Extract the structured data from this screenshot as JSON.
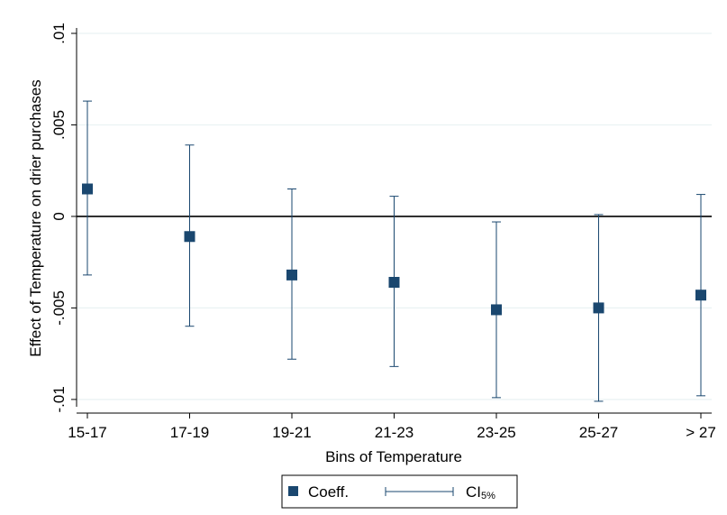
{
  "chart_data": {
    "type": "scatter",
    "title": "",
    "xlabel": "Bins of Temperature",
    "ylabel": "Effect of Temperature on drier purchases",
    "categories": [
      "15-17",
      "17-19",
      "19-21",
      "21-23",
      "23-25",
      "25-27",
      "> 27"
    ],
    "ylim": [
      -0.0104,
      0.01
    ],
    "yticks": [
      0.01,
      0.005,
      0,
      -0.005,
      -0.01
    ],
    "ytick_labels": [
      ".01",
      ".005",
      "0",
      "-.005",
      "-.01"
    ],
    "grid": true,
    "reference_line": 0,
    "series": [
      {
        "name": "Coeff.",
        "values": [
          0.0015,
          -0.0011,
          -0.0032,
          -0.0036,
          -0.0051,
          -0.005,
          -0.0043
        ]
      },
      {
        "name": "CI",
        "name_subscript": "5%",
        "lower": [
          -0.0032,
          -0.006,
          -0.0078,
          -0.0082,
          -0.0099,
          -0.0101,
          -0.0098
        ],
        "upper": [
          0.0063,
          0.0039,
          0.0015,
          0.0011,
          -0.0003,
          0.0001,
          0.0012
        ]
      }
    ],
    "legend": {
      "position": "bottom",
      "entries": [
        "Coeff.",
        "CI"
      ]
    },
    "colors": {
      "marker": "#1a476f",
      "ci": "#1a476f",
      "grid": "#eaf2f3",
      "axis": "#000000"
    }
  }
}
